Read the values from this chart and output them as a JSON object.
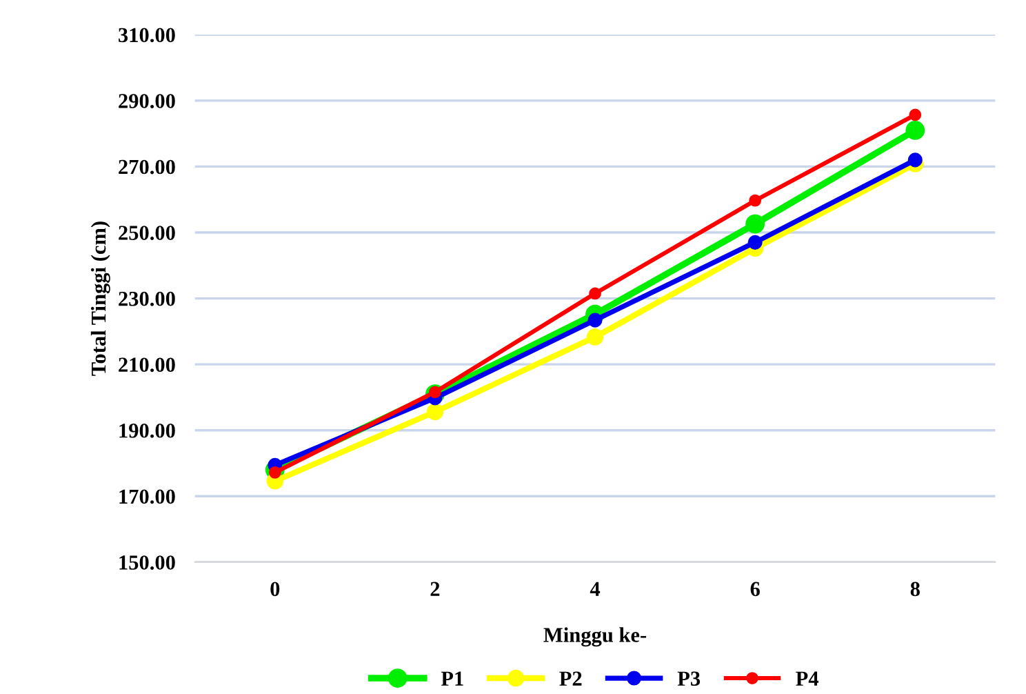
{
  "chart_data": {
    "type": "line",
    "xlabel": "Minggu ke-",
    "ylabel": "Total Tinggi (cm)",
    "categories": [
      "0",
      "2",
      "4",
      "6",
      "8"
    ],
    "series": [
      {
        "name": "P1",
        "color": "#00ee00",
        "values": [
          178,
          201,
          225.2,
          252.6,
          281
        ]
      },
      {
        "name": "P2",
        "color": "#ffff00",
        "values": [
          174.6,
          195.6,
          218.3,
          245.2,
          270.8
        ]
      },
      {
        "name": "P3",
        "color": "#0000ee",
        "values": [
          179.4,
          199.8,
          223.4,
          247,
          272
        ]
      },
      {
        "name": "P4",
        "color": "#ff0000",
        "values": [
          177.2,
          201.6,
          231.5,
          259.7,
          285.7
        ]
      }
    ],
    "ylim": [
      150,
      310
    ],
    "yticks": [
      {
        "value": 150,
        "label": "150.00"
      },
      {
        "value": 170,
        "label": "170.00"
      },
      {
        "value": 190,
        "label": "190.00"
      },
      {
        "value": 210,
        "label": "210.00"
      },
      {
        "value": 230,
        "label": "230.00"
      },
      {
        "value": 250,
        "label": "250.00"
      },
      {
        "value": 270,
        "label": "270.00"
      },
      {
        "value": 290,
        "label": "290.00"
      },
      {
        "value": 310,
        "label": "310.00"
      }
    ],
    "grid": "y",
    "legend": "bottom",
    "marker": "circle",
    "line_style": "solid"
  }
}
